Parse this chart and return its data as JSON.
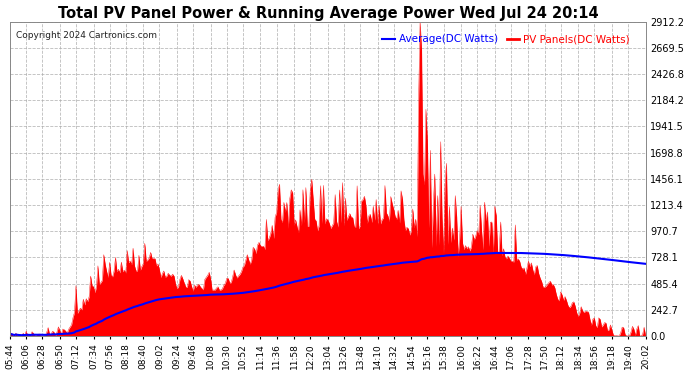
{
  "title": "Total PV Panel Power & Running Average Power Wed Jul 24 20:14",
  "copyright": "Copyright 2024 Cartronics.com",
  "legend_avg": "Average(DC Watts)",
  "legend_pv": "PV Panels(DC Watts)",
  "ylabel_right_values": [
    0.0,
    242.7,
    485.4,
    728.1,
    970.7,
    1213.4,
    1456.1,
    1698.8,
    1941.5,
    2184.2,
    2426.8,
    2669.5,
    2912.2
  ],
  "ymax": 2912.2,
  "ymin": 0.0,
  "bg_color": "#ffffff",
  "plot_bg_color": "#ffffff",
  "grid_color": "#aaaaaa",
  "pv_color": "#ff0000",
  "avg_color": "#0000ff",
  "title_color": "#000000",
  "legend_avg_color": "#0000ff",
  "legend_pv_color": "#ff0000",
  "time_labels": [
    "05:44",
    "06:06",
    "06:28",
    "06:50",
    "07:12",
    "07:34",
    "07:56",
    "08:18",
    "08:40",
    "09:02",
    "09:24",
    "09:46",
    "10:08",
    "10:30",
    "10:52",
    "11:14",
    "11:36",
    "11:58",
    "12:20",
    "13:04",
    "13:26",
    "13:48",
    "14:10",
    "14:32",
    "14:54",
    "15:16",
    "15:38",
    "16:00",
    "16:22",
    "16:44",
    "17:06",
    "17:28",
    "17:50",
    "18:12",
    "18:34",
    "18:56",
    "19:18",
    "19:40",
    "20:02"
  ]
}
